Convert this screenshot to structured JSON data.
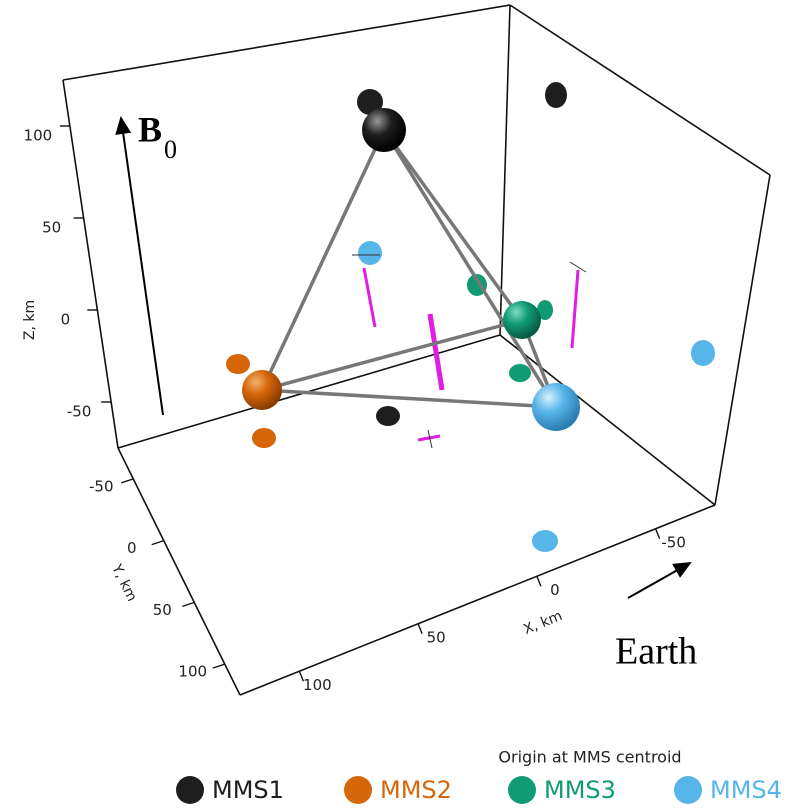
{
  "chart_data": {
    "type": "scatter3d",
    "note": "Origin at MMS centroid",
    "xlabel": "X, km",
    "ylabel": "Y, km",
    "zlabel": "Z, km",
    "xlim": [
      125,
      -75
    ],
    "ylim": [
      -75,
      125
    ],
    "zlim": [
      -75,
      125
    ],
    "xticks": [
      -50,
      0,
      50,
      100
    ],
    "yticks": [
      -50,
      0,
      50,
      100
    ],
    "zticks": [
      -50,
      0,
      50,
      100
    ],
    "annotations": {
      "field": {
        "main": "B",
        "sub": "0"
      },
      "direction": "Earth"
    },
    "series": [
      {
        "name": "MMS1",
        "color": "#1e1e1e"
      },
      {
        "name": "MMS2",
        "color": "#d5660a"
      },
      {
        "name": "MMS3",
        "color": "#109b74"
      },
      {
        "name": "MMS4",
        "color": "#57b5ea"
      }
    ]
  }
}
